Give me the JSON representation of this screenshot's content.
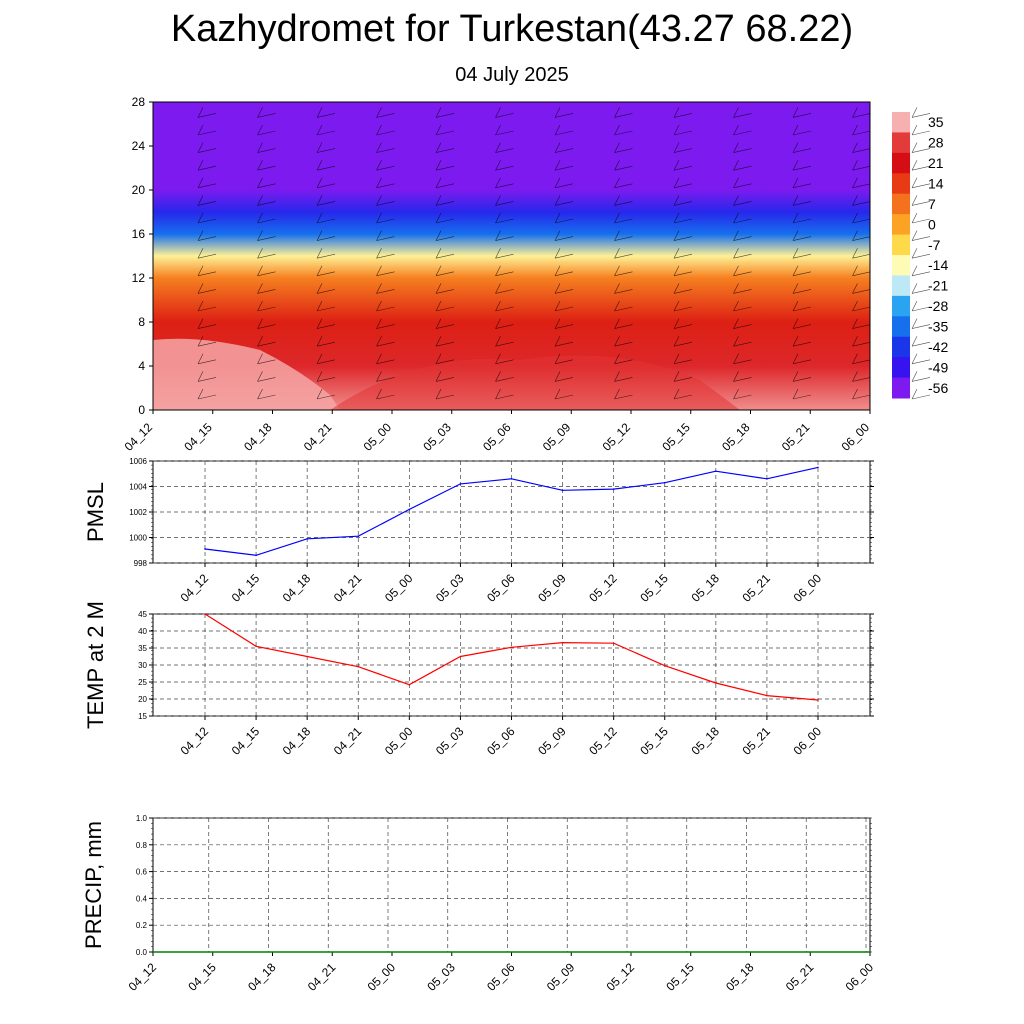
{
  "title": "Kazhydromet for Turkestan(43.27 68.22)",
  "subtitle": "04 July 2025",
  "chart_data": [
    {
      "type": "heatmap",
      "name": "cross-section",
      "x_ticks": [
        "04_12",
        "04_15",
        "04_18",
        "04_21",
        "05_00",
        "05_03",
        "05_06",
        "05_09",
        "05_12",
        "05_15",
        "05_18",
        "05_21",
        "06_00"
      ],
      "y_ticks": [
        "0",
        "4",
        "8",
        "12",
        "16",
        "20",
        "24",
        "28"
      ],
      "ylim": [
        0,
        28
      ],
      "colorbar_labels": [
        "35",
        "28",
        "21",
        "14",
        "7",
        "0",
        "-7",
        "-14",
        "-21",
        "-28",
        "-35",
        "-42",
        "-49",
        "-56"
      ],
      "colorbar_colors": [
        "#f7b0b0",
        "#e33a3a",
        "#d50d14",
        "#e83a14",
        "#f4721d",
        "#fca326",
        "#fed94a",
        "#fefbb5",
        "#bde9f6",
        "#2aa4f1",
        "#1670ee",
        "#1b36e8",
        "#3714ef",
        "#7c1aef"
      ],
      "temperature_profile": [
        {
          "height": 0,
          "temp": 33
        },
        {
          "height": 4,
          "temp": 25
        },
        {
          "height": 8,
          "temp": 18
        },
        {
          "height": 12,
          "temp": 5
        },
        {
          "height": 14,
          "temp": -12
        },
        {
          "height": 16,
          "temp": -35
        },
        {
          "height": 18,
          "temp": -45
        },
        {
          "height": 20,
          "temp": -57
        },
        {
          "height": 22,
          "temp": -62
        },
        {
          "height": 28,
          "temp": -65
        }
      ],
      "grid": false
    },
    {
      "type": "line",
      "name": "pmsl",
      "ylabel": "PMSL",
      "categories": [
        "04_12",
        "04_15",
        "04_18",
        "04_21",
        "05_00",
        "05_03",
        "05_06",
        "05_09",
        "05_12",
        "05_15",
        "05_18",
        "05_21",
        "06_00"
      ],
      "values": [
        999.1,
        998.6,
        999.9,
        1000.1,
        1002.2,
        1004.2,
        1004.6,
        1003.7,
        1003.8,
        1004.3,
        1005.2,
        1004.6,
        1005.5
      ],
      "ylim": [
        998,
        1006
      ],
      "y_ticks": [
        998,
        1000,
        1002,
        1004,
        1006
      ],
      "color": "#0000ff",
      "grid": true
    },
    {
      "type": "line",
      "name": "temp2m",
      "ylabel": "TEMP at 2 M",
      "categories": [
        "04_12",
        "04_15",
        "04_18",
        "04_21",
        "05_00",
        "05_03",
        "05_06",
        "05_09",
        "05_12",
        "05_15",
        "05_18",
        "05_21",
        "06_00"
      ],
      "values": [
        45,
        35.5,
        32.5,
        29.5,
        24.2,
        32.5,
        35.2,
        36.6,
        36.4,
        29.8,
        24.7,
        21.0,
        19.7
      ],
      "ylim": [
        15,
        45
      ],
      "y_ticks": [
        15,
        20,
        25,
        30,
        35,
        40,
        45
      ],
      "color": "#ff0000",
      "grid": true
    },
    {
      "type": "line",
      "name": "precip",
      "ylabel": "PRECIP, mm",
      "categories": [
        "04_12",
        "04_15",
        "04_18",
        "04_21",
        "05_00",
        "05_03",
        "05_06",
        "05_09",
        "05_12",
        "05_15",
        "05_18",
        "05_21",
        "06_00"
      ],
      "values": [
        0,
        0,
        0,
        0,
        0,
        0,
        0,
        0,
        0,
        0,
        0,
        0,
        0
      ],
      "ylim": [
        0,
        1
      ],
      "y_ticks": [
        "0.0",
        "0.2",
        "0.4",
        "0.6",
        "0.8",
        "1.0"
      ],
      "color": "#008000",
      "grid": true
    }
  ]
}
